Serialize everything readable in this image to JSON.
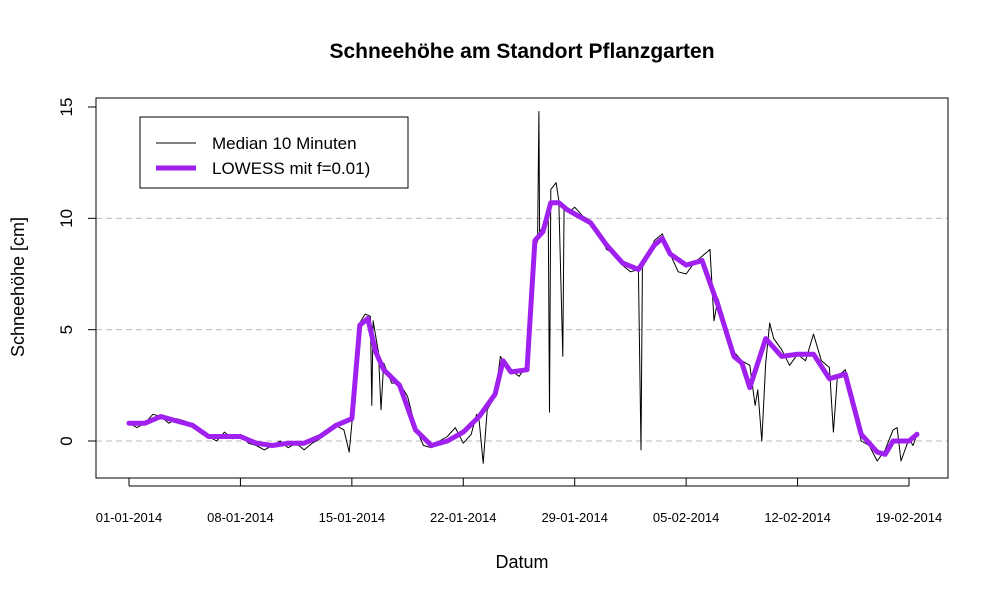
{
  "chart_data": {
    "type": "line",
    "title": "Schneehöhe am Standort Pflanzgarten",
    "xlabel": "Datum",
    "ylabel": "Schneehöhe [cm]",
    "xlim": [
      "2014-01-01",
      "2014-02-20"
    ],
    "ylim": [
      -1.5,
      15
    ],
    "x_ticks": [
      "2014-01-01",
      "2014-01-08",
      "2014-01-15",
      "2014-01-22",
      "2014-01-29",
      "2014-02-05",
      "2014-02-12",
      "2014-02-19"
    ],
    "x_tick_labels": [
      "01-01-2014",
      "08-01-2014",
      "15-01-2014",
      "22-01-2014",
      "29-01-2014",
      "05-02-2014",
      "12-02-2014",
      "19-02-2014"
    ],
    "y_ticks": [
      0,
      5,
      10,
      15
    ],
    "y_tick_labels": [
      "0",
      "5",
      "10",
      "15"
    ],
    "grid": "horizontal dashed at y ticks",
    "legend_position": "top-left",
    "series": [
      {
        "name": "Median 10 Minuten",
        "color": "#000000",
        "style": "thin-line",
        "points": [
          [
            "2014-01-01",
            0.8
          ],
          [
            "2014-01-01 12:00",
            0.6
          ],
          [
            "2014-01-02",
            0.8
          ],
          [
            "2014-01-02 12:00",
            1.2
          ],
          [
            "2014-01-03",
            1.1
          ],
          [
            "2014-01-03 12:00",
            0.8
          ],
          [
            "2014-01-04",
            1.0
          ],
          [
            "2014-01-04 12:00",
            0.9
          ],
          [
            "2014-01-05",
            0.6
          ],
          [
            "2014-01-05 12:00",
            0.4
          ],
          [
            "2014-01-06",
            0.2
          ],
          [
            "2014-01-06 12:00",
            0.0
          ],
          [
            "2014-01-07",
            0.4
          ],
          [
            "2014-01-07 12:00",
            0.1
          ],
          [
            "2014-01-08",
            0.3
          ],
          [
            "2014-01-08 12:00",
            -0.1
          ],
          [
            "2014-01-09",
            -0.2
          ],
          [
            "2014-01-09 12:00",
            -0.4
          ],
          [
            "2014-01-10",
            -0.2
          ],
          [
            "2014-01-10 12:00",
            0.0
          ],
          [
            "2014-01-11",
            -0.3
          ],
          [
            "2014-01-11 12:00",
            -0.1
          ],
          [
            "2014-01-12",
            -0.4
          ],
          [
            "2014-01-12 12:00",
            -0.1
          ],
          [
            "2014-01-13",
            0.1
          ],
          [
            "2014-01-13 12:00",
            0.4
          ],
          [
            "2014-01-14",
            0.7
          ],
          [
            "2014-01-14 12:00",
            0.5
          ],
          [
            "2014-01-14 20:00",
            -0.5
          ],
          [
            "2014-01-15",
            0.8
          ],
          [
            "2014-01-15 06:00",
            3.5
          ],
          [
            "2014-01-15 12:00",
            5.3
          ],
          [
            "2014-01-15 20:00",
            5.7
          ],
          [
            "2014-01-16 04:00",
            5.6
          ],
          [
            "2014-01-16 06:00",
            1.6
          ],
          [
            "2014-01-16 08:00",
            5.4
          ],
          [
            "2014-01-16 16:00",
            4.0
          ],
          [
            "2014-01-16 20:00",
            1.4
          ],
          [
            "2014-01-17",
            3.5
          ],
          [
            "2014-01-17 12:00",
            2.6
          ],
          [
            "2014-01-18",
            2.6
          ],
          [
            "2014-01-18 12:00",
            2.0
          ],
          [
            "2014-01-19",
            0.6
          ],
          [
            "2014-01-19 12:00",
            -0.2
          ],
          [
            "2014-01-20",
            -0.3
          ],
          [
            "2014-01-20 12:00",
            0.0
          ],
          [
            "2014-01-21",
            0.2
          ],
          [
            "2014-01-21 12:00",
            0.6
          ],
          [
            "2014-01-22",
            -0.1
          ],
          [
            "2014-01-22 12:00",
            0.3
          ],
          [
            "2014-01-22 20:00",
            1.2
          ],
          [
            "2014-01-23",
            0.9
          ],
          [
            "2014-01-23 06:00",
            -1.0
          ],
          [
            "2014-01-23 12:00",
            1.4
          ],
          [
            "2014-01-24",
            2.0
          ],
          [
            "2014-01-24 08:00",
            3.8
          ],
          [
            "2014-01-24 12:00",
            3.6
          ],
          [
            "2014-01-25",
            3.2
          ],
          [
            "2014-01-25 12:00",
            2.9
          ],
          [
            "2014-01-26",
            3.4
          ],
          [
            "2014-01-26 12:00",
            8.6
          ],
          [
            "2014-01-26 16:00",
            9.0
          ],
          [
            "2014-01-26 18:00",
            14.8
          ],
          [
            "2014-01-26 19:00",
            9.4
          ],
          [
            "2014-01-27",
            9.6
          ],
          [
            "2014-01-27 08:00",
            10.4
          ],
          [
            "2014-01-27 10:00",
            1.3
          ],
          [
            "2014-01-27 12:00",
            11.3
          ],
          [
            "2014-01-27 20:00",
            11.6
          ],
          [
            "2014-01-28",
            10.8
          ],
          [
            "2014-01-28 06:00",
            3.8
          ],
          [
            "2014-01-28 08:00",
            10.6
          ],
          [
            "2014-01-28 16:00",
            10.3
          ],
          [
            "2014-01-29",
            10.5
          ],
          [
            "2014-01-29 12:00",
            10.1
          ],
          [
            "2014-01-30",
            9.9
          ],
          [
            "2014-01-30 12:00",
            9.4
          ],
          [
            "2014-01-31",
            8.6
          ],
          [
            "2014-01-31 12:00",
            8.4
          ],
          [
            "2014-02-01",
            7.9
          ],
          [
            "2014-02-01 12:00",
            7.6
          ],
          [
            "2014-02-02",
            7.7
          ],
          [
            "2014-02-02 04:00",
            -0.4
          ],
          [
            "2014-02-02 06:00",
            7.8
          ],
          [
            "2014-02-02 16:00",
            8.3
          ],
          [
            "2014-02-03",
            9.0
          ],
          [
            "2014-02-03 12:00",
            9.3
          ],
          [
            "2014-02-04",
            8.4
          ],
          [
            "2014-02-04 12:00",
            7.6
          ],
          [
            "2014-02-05",
            7.5
          ],
          [
            "2014-02-05 12:00",
            8.0
          ],
          [
            "2014-02-06",
            8.3
          ],
          [
            "2014-02-06 12:00",
            8.6
          ],
          [
            "2014-02-06 18:00",
            5.4
          ],
          [
            "2014-02-07",
            6.4
          ],
          [
            "2014-02-07 12:00",
            5.2
          ],
          [
            "2014-02-08",
            4.0
          ],
          [
            "2014-02-08 12:00",
            3.6
          ],
          [
            "2014-02-09",
            3.4
          ],
          [
            "2014-02-09 08:00",
            1.6
          ],
          [
            "2014-02-09 12:00",
            2.3
          ],
          [
            "2014-02-09 18:00",
            0.0
          ],
          [
            "2014-02-10",
            3.5
          ],
          [
            "2014-02-10 06:00",
            5.3
          ],
          [
            "2014-02-10 12:00",
            4.6
          ],
          [
            "2014-02-11",
            4.1
          ],
          [
            "2014-02-11 12:00",
            3.4
          ],
          [
            "2014-02-12",
            3.9
          ],
          [
            "2014-02-12 12:00",
            3.6
          ],
          [
            "2014-02-13",
            4.8
          ],
          [
            "2014-02-13 12:00",
            3.6
          ],
          [
            "2014-02-14",
            3.3
          ],
          [
            "2014-02-14 06:00",
            0.4
          ],
          [
            "2014-02-14 12:00",
            2.9
          ],
          [
            "2014-02-15",
            3.2
          ],
          [
            "2014-02-15 12:00",
            1.6
          ],
          [
            "2014-02-16",
            0.0
          ],
          [
            "2014-02-16 12:00",
            -0.2
          ],
          [
            "2014-02-17",
            -0.9
          ],
          [
            "2014-02-17 12:00",
            -0.4
          ],
          [
            "2014-02-18",
            0.5
          ],
          [
            "2014-02-18 06:00",
            0.6
          ],
          [
            "2014-02-18 12:00",
            -0.9
          ],
          [
            "2014-02-19",
            0.1
          ],
          [
            "2014-02-19 06:00",
            -0.2
          ],
          [
            "2014-02-19 12:00",
            0.3
          ]
        ]
      },
      {
        "name": "LOWESS mit f=0.01)",
        "color": "#a020f0",
        "style": "thick-line",
        "points": [
          [
            "2014-01-01",
            0.8
          ],
          [
            "2014-01-02",
            0.8
          ],
          [
            "2014-01-03",
            1.1
          ],
          [
            "2014-01-04",
            0.9
          ],
          [
            "2014-01-05",
            0.7
          ],
          [
            "2014-01-06",
            0.2
          ],
          [
            "2014-01-07",
            0.2
          ],
          [
            "2014-01-08",
            0.2
          ],
          [
            "2014-01-09",
            -0.1
          ],
          [
            "2014-01-10",
            -0.2
          ],
          [
            "2014-01-11",
            -0.1
          ],
          [
            "2014-01-12",
            -0.1
          ],
          [
            "2014-01-13",
            0.2
          ],
          [
            "2014-01-14",
            0.7
          ],
          [
            "2014-01-15",
            1.0
          ],
          [
            "2014-01-15 12:00",
            5.2
          ],
          [
            "2014-01-16",
            5.5
          ],
          [
            "2014-01-16 12:00",
            4.0
          ],
          [
            "2014-01-17",
            3.2
          ],
          [
            "2014-01-18",
            2.5
          ],
          [
            "2014-01-19",
            0.5
          ],
          [
            "2014-01-20",
            -0.2
          ],
          [
            "2014-01-21",
            0.0
          ],
          [
            "2014-01-22",
            0.4
          ],
          [
            "2014-01-23",
            1.1
          ],
          [
            "2014-01-24",
            2.1
          ],
          [
            "2014-01-24 12:00",
            3.6
          ],
          [
            "2014-01-25",
            3.1
          ],
          [
            "2014-01-26",
            3.2
          ],
          [
            "2014-01-26 12:00",
            9.0
          ],
          [
            "2014-01-27",
            9.4
          ],
          [
            "2014-01-27 12:00",
            10.7
          ],
          [
            "2014-01-28",
            10.7
          ],
          [
            "2014-01-28 12:00",
            10.4
          ],
          [
            "2014-01-29",
            10.2
          ],
          [
            "2014-01-30",
            9.8
          ],
          [
            "2014-01-31",
            8.8
          ],
          [
            "2014-02-01",
            8.0
          ],
          [
            "2014-02-02",
            7.7
          ],
          [
            "2014-02-03",
            8.8
          ],
          [
            "2014-02-03 12:00",
            9.1
          ],
          [
            "2014-02-04",
            8.4
          ],
          [
            "2014-02-05",
            7.9
          ],
          [
            "2014-02-06",
            8.1
          ],
          [
            "2014-02-06 12:00",
            7.1
          ],
          [
            "2014-02-07",
            6.1
          ],
          [
            "2014-02-08",
            3.8
          ],
          [
            "2014-02-08 12:00",
            3.5
          ],
          [
            "2014-02-09",
            2.4
          ],
          [
            "2014-02-10",
            4.6
          ],
          [
            "2014-02-11",
            3.8
          ],
          [
            "2014-02-12",
            3.9
          ],
          [
            "2014-02-13",
            3.9
          ],
          [
            "2014-02-14",
            2.8
          ],
          [
            "2014-02-15",
            3.0
          ],
          [
            "2014-02-16",
            0.3
          ],
          [
            "2014-02-17",
            -0.5
          ],
          [
            "2014-02-17 12:00",
            -0.6
          ],
          [
            "2014-02-18",
            0.0
          ],
          [
            "2014-02-19",
            0.0
          ],
          [
            "2014-02-19 12:00",
            0.3
          ]
        ]
      }
    ]
  }
}
